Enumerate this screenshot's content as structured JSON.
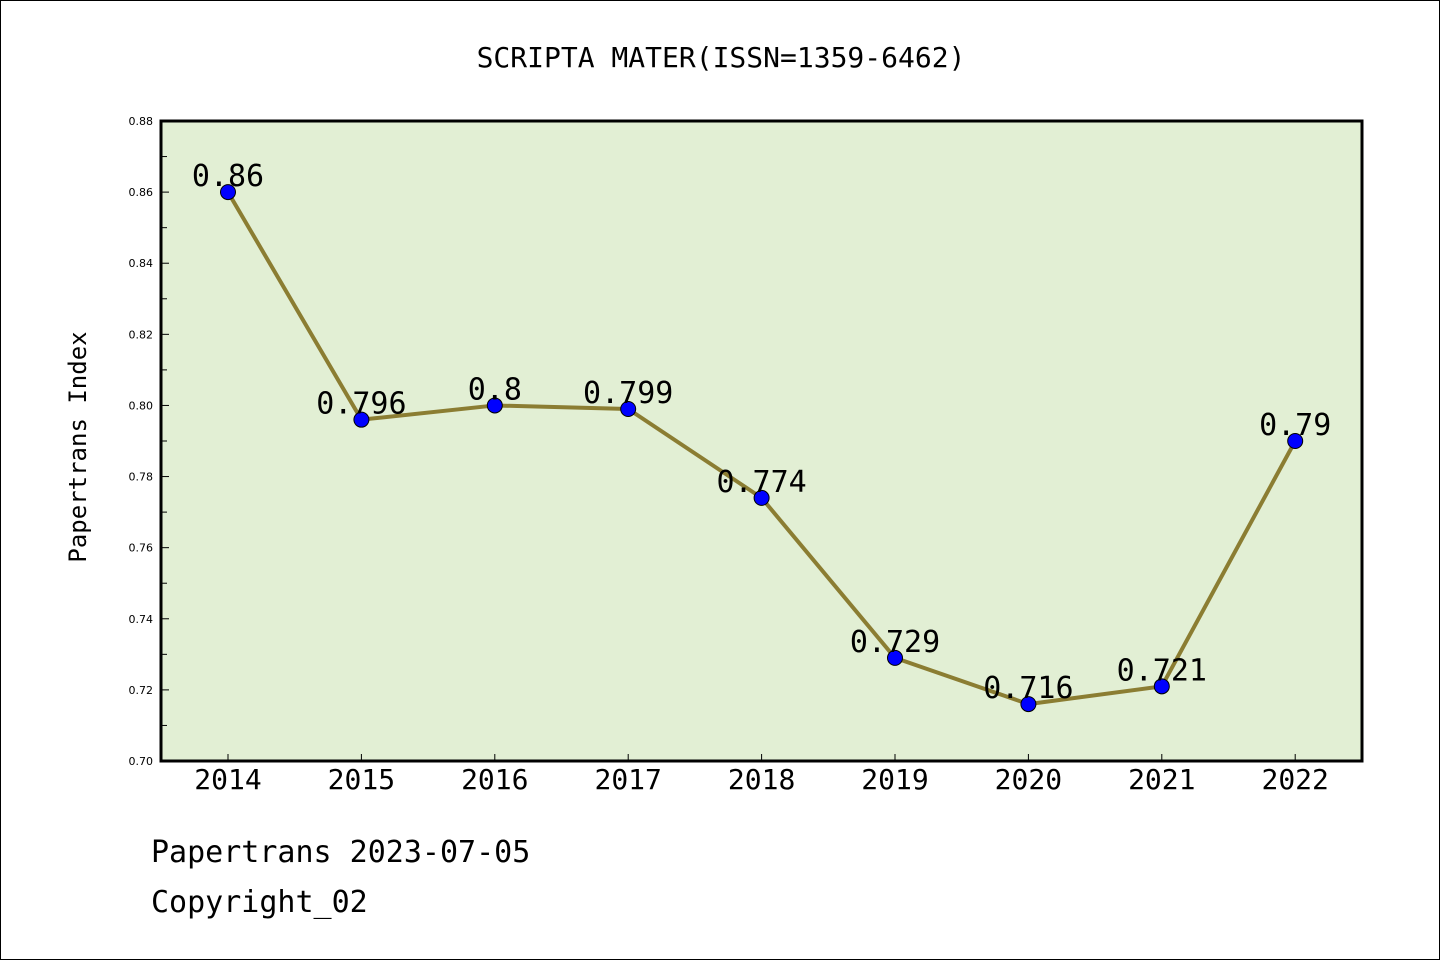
{
  "chart_data": {
    "type": "line",
    "title": "SCRIPTA MATER(ISSN=1359-6462)",
    "xlabel": "",
    "ylabel": "Papertrans Index",
    "categories": [
      "2014",
      "2015",
      "2016",
      "2017",
      "2018",
      "2019",
      "2020",
      "2021",
      "2022"
    ],
    "series": [
      {
        "values": [
          0.86,
          0.796,
          0.8,
          0.799,
          0.774,
          0.729,
          0.716,
          0.721,
          0.79
        ],
        "data_labels": [
          "0.86",
          "0.796",
          "0.8",
          "0.799",
          "0.774",
          "0.729",
          "0.716",
          "0.721",
          "0.79"
        ]
      }
    ],
    "ylim": [
      0.7,
      0.88
    ],
    "yticks": [
      "0.70",
      "0.72",
      "0.74",
      "0.76",
      "0.78",
      "0.80",
      "0.82",
      "0.84",
      "0.86",
      "0.88"
    ],
    "grid": false,
    "legend": "none",
    "colors": {
      "plot_background": "#e2efd4",
      "line": "#8b7d32",
      "marker": "#0000ff"
    }
  },
  "footer": {
    "line1": "Papertrans 2023-07-05",
    "line2": "Copyright_02"
  }
}
